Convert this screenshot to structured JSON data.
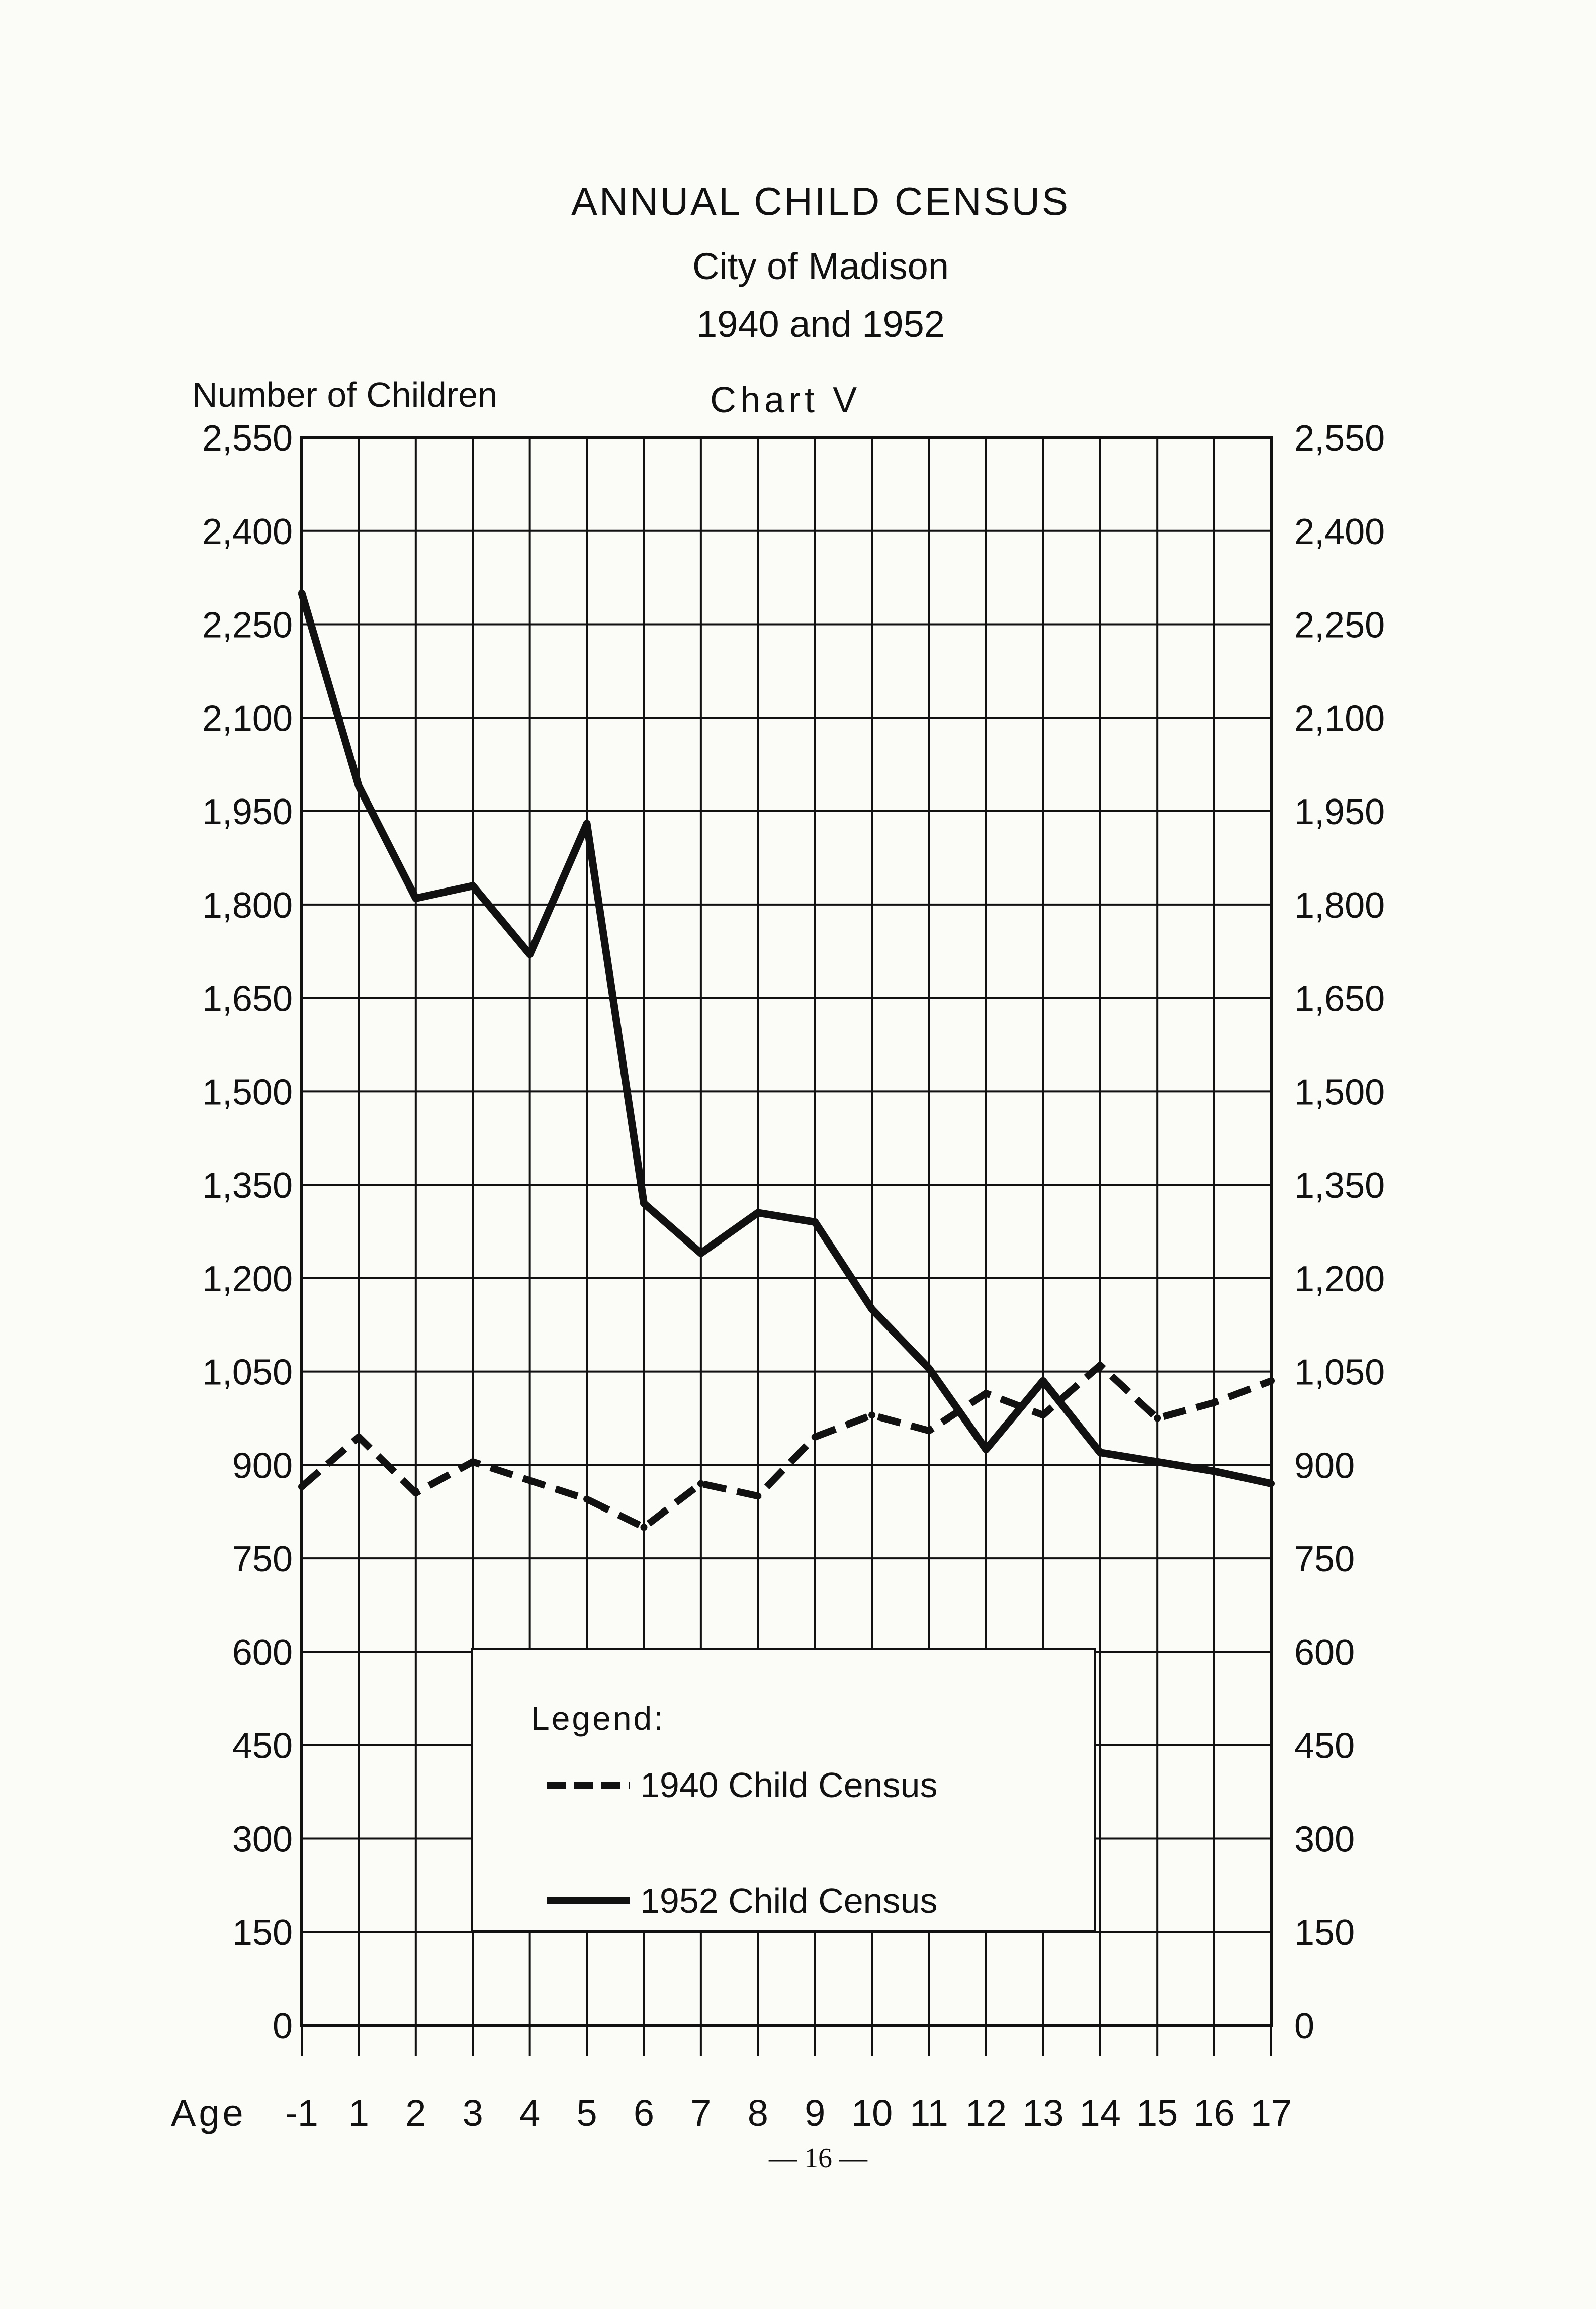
{
  "page": {
    "title_line1": "ANNUAL CHILD CENSUS",
    "title_line2": "City of Madison",
    "title_line3": "1940 and 1952",
    "chart_tag": "Chart V",
    "page_number": "— 16 —"
  },
  "chart_data": {
    "type": "line",
    "title": "ANNUAL CHILD CENSUS",
    "subtitle": "City of Madison 1940 and 1952",
    "ylabel": "Number of Children",
    "xlabel": "Age",
    "categories": [
      "-1",
      "1",
      "2",
      "3",
      "4",
      "5",
      "6",
      "7",
      "8",
      "9",
      "10",
      "11",
      "12",
      "13",
      "14",
      "15",
      "16",
      "17"
    ],
    "y_ticks": [
      "0",
      "150",
      "300",
      "450",
      "600",
      "750",
      "900",
      "1,050",
      "1,200",
      "1,350",
      "1,500",
      "1,650",
      "1,800",
      "1,950",
      "2,100",
      "2,250",
      "2,400",
      "2,550"
    ],
    "y_ticks_right": [
      "0",
      "150",
      "300",
      "450",
      "600",
      "750",
      "900",
      "1,050",
      "1,200",
      "1,350",
      "1,500",
      "1,650",
      "1,800",
      "1,950",
      "2,100",
      "2,250",
      "2,400",
      "2,550"
    ],
    "ylim": [
      0,
      2550
    ],
    "grid": true,
    "legend_position": "lower-center",
    "legend_title": "Legend:",
    "series": [
      {
        "name": "1940 Child Census",
        "style": "dashed",
        "values": [
          865,
          945,
          855,
          905,
          875,
          845,
          800,
          870,
          850,
          945,
          980,
          955,
          1015,
          980,
          1060,
          975,
          1000,
          1035
        ]
      },
      {
        "name": "1952 Child Census",
        "style": "solid",
        "values": [
          2300,
          1990,
          1810,
          1830,
          1720,
          1930,
          1320,
          1240,
          1305,
          1290,
          1150,
          1055,
          925,
          1035,
          920,
          905,
          890,
          870
        ]
      }
    ],
    "colors": {
      "line": "#111111",
      "grid": "#111111",
      "paper": "#fbfbf8"
    }
  }
}
